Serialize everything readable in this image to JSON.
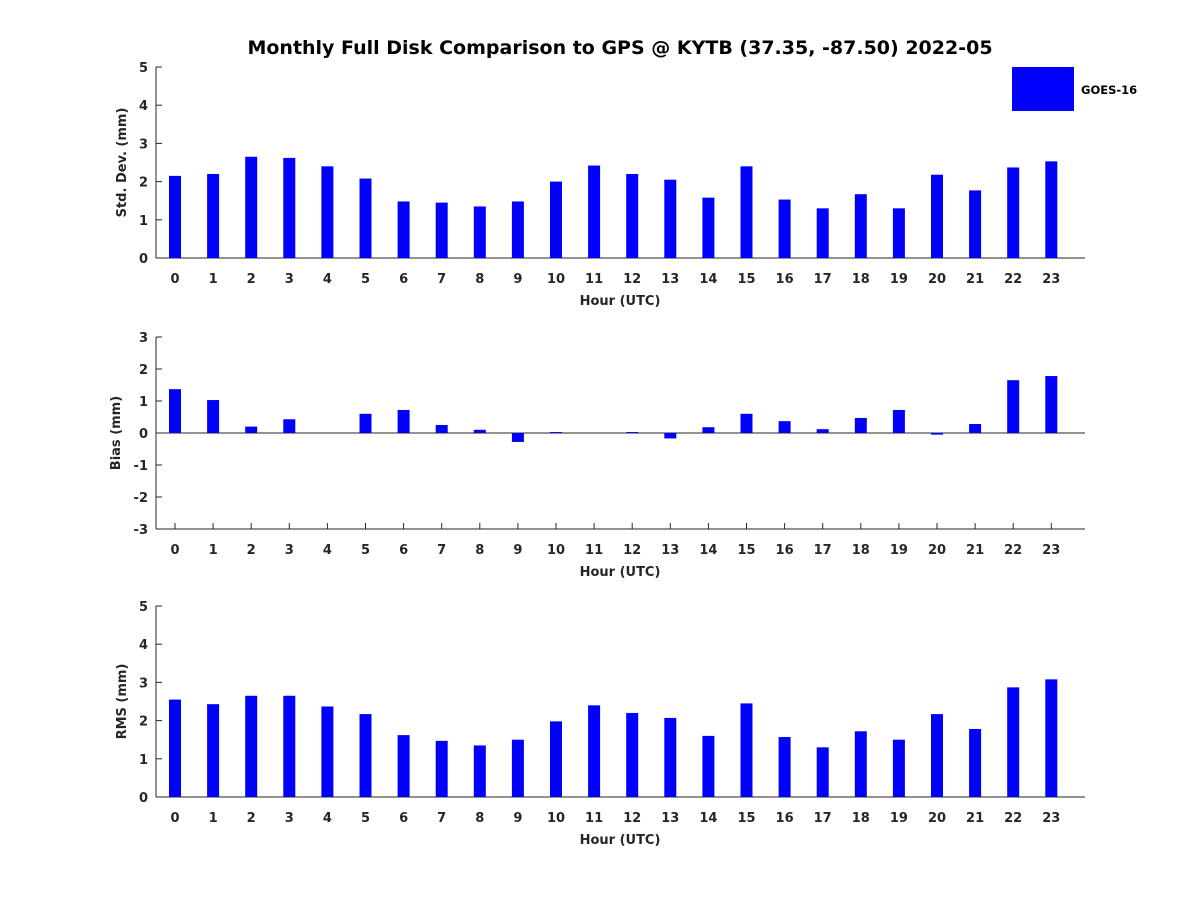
{
  "title": "Monthly Full Disk Comparison to GPS @ KYTB (37.35, -87.50) 2022-05",
  "legend": {
    "label": "GOES-16",
    "color": "#0000ff",
    "placement": "top-right"
  },
  "chart_data": [
    {
      "type": "bar",
      "name": "std-dev",
      "xlabel": "Hour (UTC)",
      "ylabel": "Std. Dev. (mm)",
      "ylim": [
        0,
        5
      ],
      "yticks": [
        "0",
        "1",
        "2",
        "3",
        "4",
        "5"
      ],
      "categories": [
        "0",
        "1",
        "2",
        "3",
        "4",
        "5",
        "6",
        "7",
        "8",
        "9",
        "10",
        "11",
        "12",
        "13",
        "14",
        "15",
        "16",
        "17",
        "18",
        "19",
        "20",
        "21",
        "22",
        "23"
      ],
      "series": [
        {
          "name": "GOES-16",
          "values": [
            2.15,
            2.2,
            2.65,
            2.62,
            2.4,
            2.08,
            1.48,
            1.45,
            1.35,
            1.48,
            2.0,
            2.42,
            2.2,
            2.05,
            1.58,
            2.4,
            1.53,
            1.3,
            1.67,
            1.3,
            2.18,
            1.77,
            2.37,
            2.53
          ]
        }
      ]
    },
    {
      "type": "bar",
      "name": "bias",
      "xlabel": "Hour (UTC)",
      "ylabel": "Bias (mm)",
      "ylim": [
        -3,
        3
      ],
      "yticks": [
        "-3",
        "-2",
        "-1",
        "0",
        "1",
        "2",
        "3"
      ],
      "categories": [
        "0",
        "1",
        "2",
        "3",
        "4",
        "5",
        "6",
        "7",
        "8",
        "9",
        "10",
        "11",
        "12",
        "13",
        "14",
        "15",
        "16",
        "17",
        "18",
        "19",
        "20",
        "21",
        "22",
        "23"
      ],
      "series": [
        {
          "name": "GOES-16",
          "values": [
            1.37,
            1.03,
            0.2,
            0.43,
            0.0,
            0.6,
            0.72,
            0.25,
            0.1,
            -0.28,
            0.03,
            0.0,
            0.03,
            -0.17,
            0.18,
            0.6,
            0.37,
            0.12,
            0.47,
            0.72,
            -0.05,
            0.28,
            1.65,
            1.78
          ]
        }
      ]
    },
    {
      "type": "bar",
      "name": "rms",
      "xlabel": "Hour (UTC)",
      "ylabel": "RMS (mm)",
      "ylim": [
        0,
        5
      ],
      "yticks": [
        "0",
        "1",
        "2",
        "3",
        "4",
        "5"
      ],
      "categories": [
        "0",
        "1",
        "2",
        "3",
        "4",
        "5",
        "6",
        "7",
        "8",
        "9",
        "10",
        "11",
        "12",
        "13",
        "14",
        "15",
        "16",
        "17",
        "18",
        "19",
        "20",
        "21",
        "22",
        "23"
      ],
      "series": [
        {
          "name": "GOES-16",
          "values": [
            2.55,
            2.43,
            2.65,
            2.65,
            2.37,
            2.17,
            1.62,
            1.47,
            1.35,
            1.5,
            1.98,
            2.4,
            2.2,
            2.07,
            1.6,
            2.45,
            1.57,
            1.3,
            1.72,
            1.5,
            2.17,
            1.78,
            2.87,
            3.08
          ]
        }
      ]
    }
  ]
}
